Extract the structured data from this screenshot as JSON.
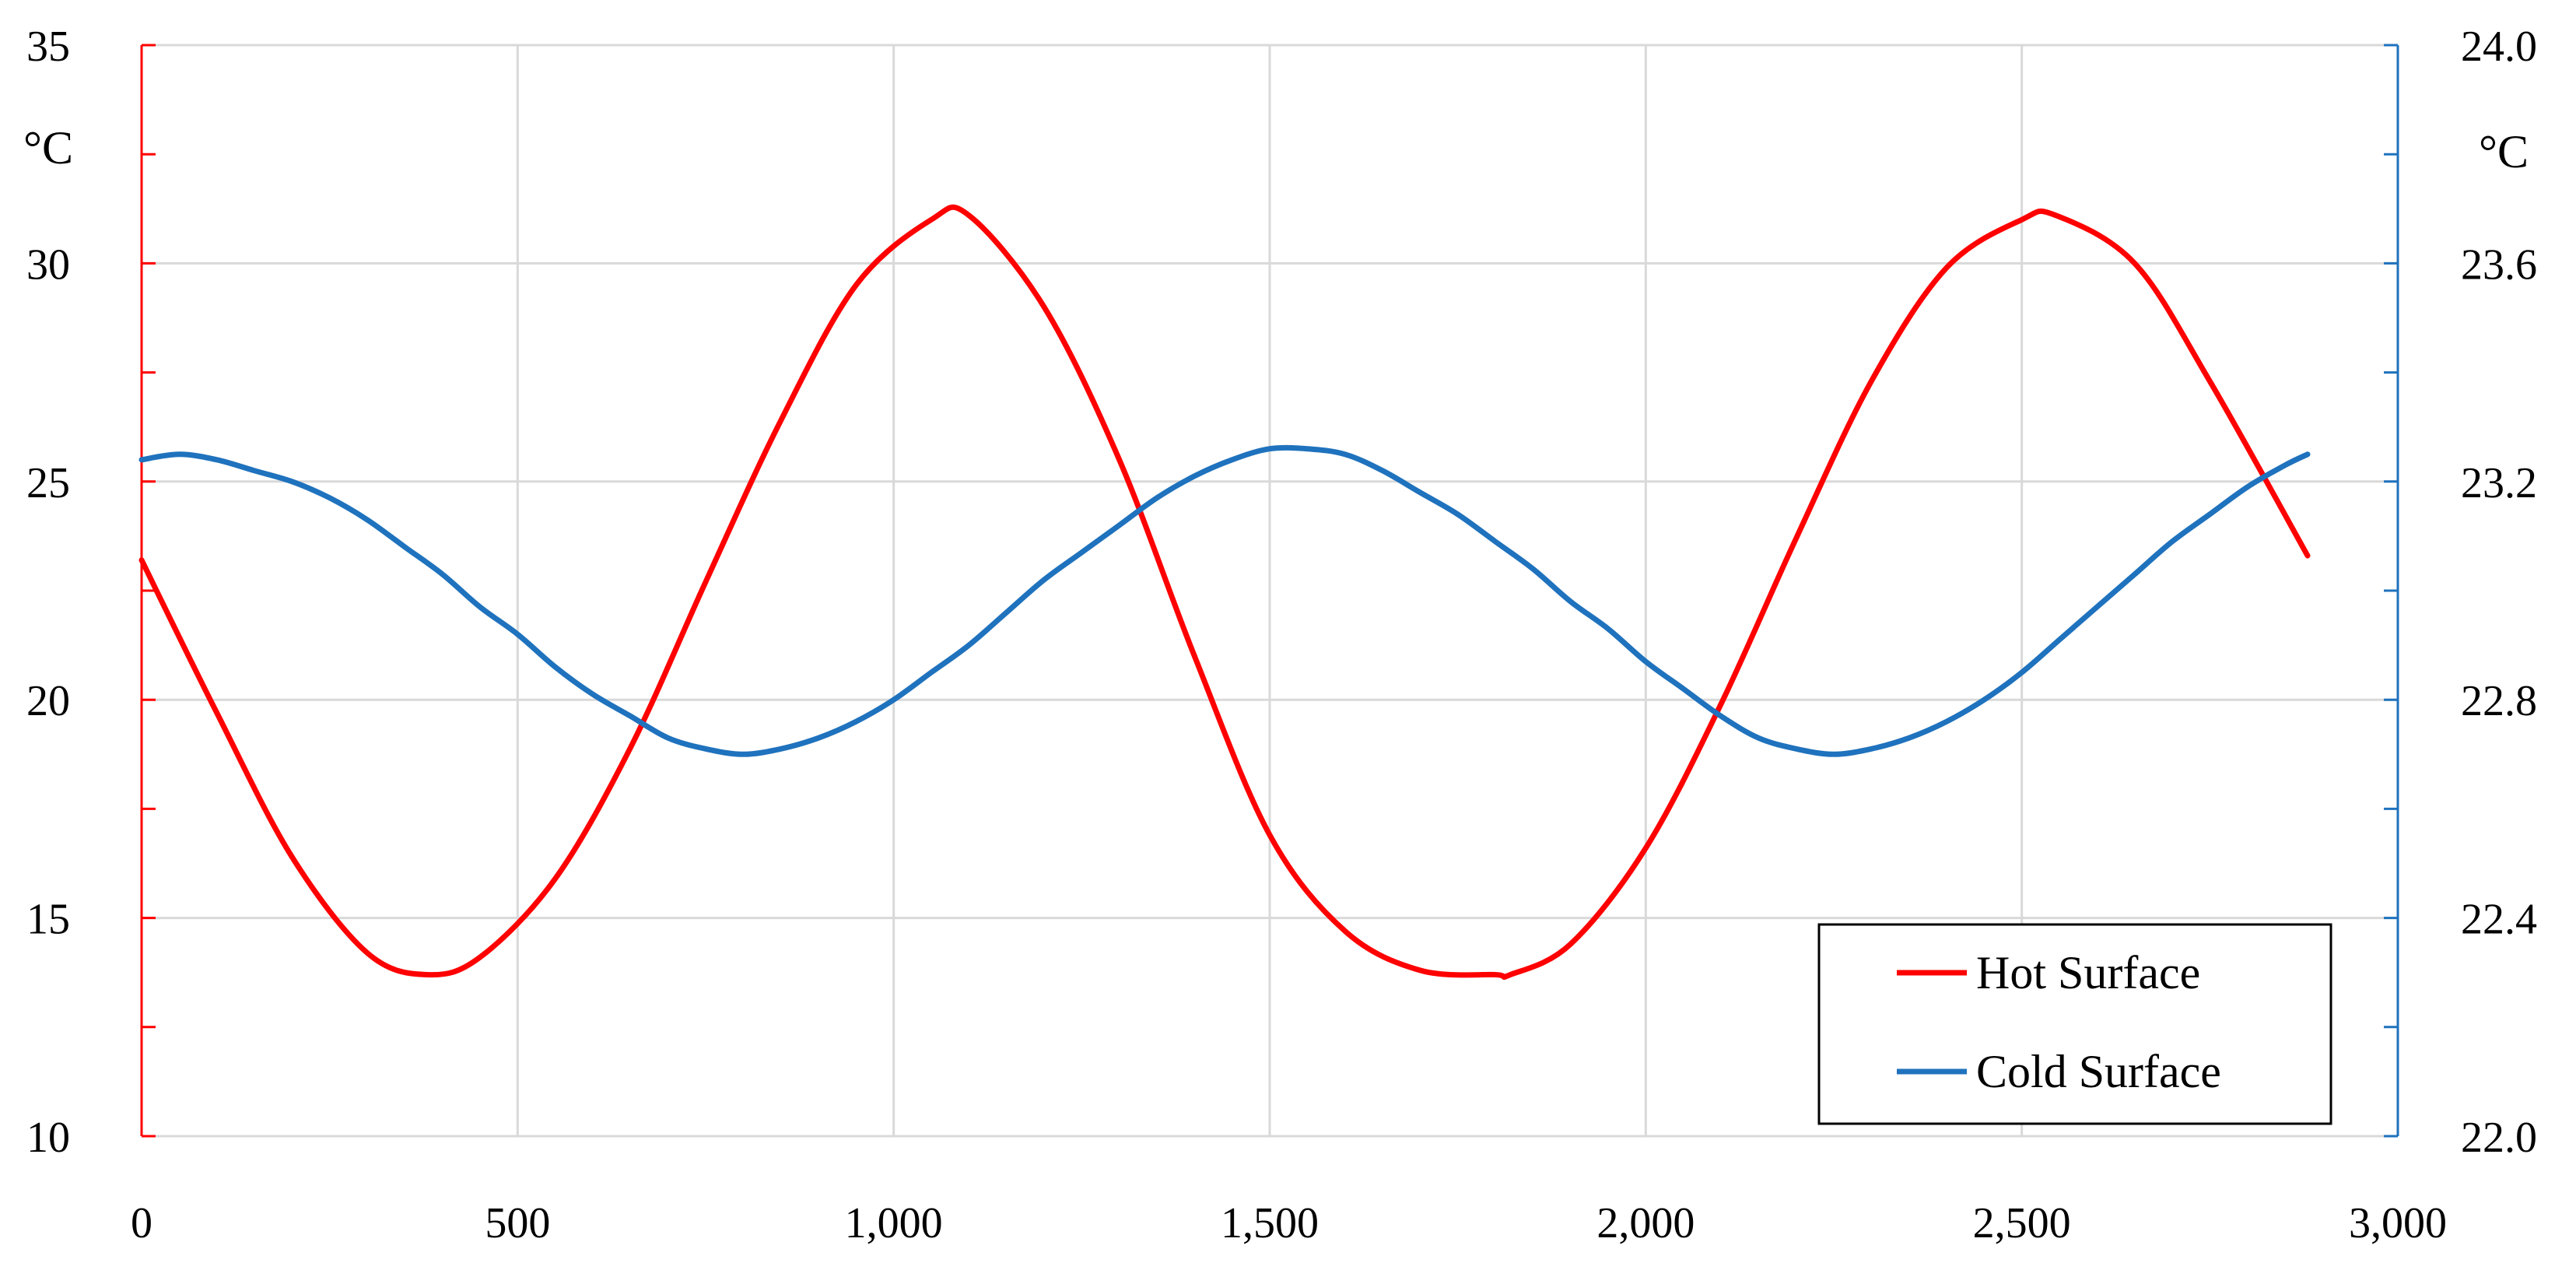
{
  "chart_data": {
    "type": "line",
    "title": "",
    "xlabel": "",
    "x_ticks": [
      "0",
      "500",
      "1,000",
      "1,500",
      "2,000",
      "2,500",
      "3,000"
    ],
    "xlim": [
      0,
      3000
    ],
    "y_left": {
      "unit": "°C",
      "ylim": [
        10,
        35
      ],
      "ticks": [
        "10",
        "15",
        "20",
        "25",
        "30",
        "35"
      ],
      "color": "#ff0000"
    },
    "y_right": {
      "unit": "°C",
      "ylim": [
        22.0,
        24.0
      ],
      "ticks": [
        "22.0",
        "22.4",
        "22.8",
        "23.2",
        "23.6",
        "24.0"
      ],
      "color": "#1f72bd"
    },
    "grid": true,
    "legend_position": "bottom-right",
    "series": [
      {
        "name": "Hot Surface",
        "axis": "left",
        "color": "#ff0000",
        "x": [
          0,
          100,
          200,
          300,
          380,
          450,
          550,
          650,
          750,
          850,
          950,
          1050,
          1100,
          1200,
          1300,
          1400,
          1500,
          1600,
          1700,
          1800,
          1820,
          1900,
          2000,
          2100,
          2200,
          2300,
          2400,
          2500,
          2545,
          2650,
          2750,
          2880
        ],
        "values": [
          23.2,
          19.7,
          16.4,
          14.2,
          13.7,
          14.1,
          15.9,
          18.9,
          22.7,
          26.4,
          29.5,
          31.0,
          31.1,
          29.0,
          25.5,
          21.0,
          16.9,
          14.7,
          13.8,
          13.7,
          13.7,
          14.4,
          16.6,
          19.9,
          23.7,
          27.3,
          29.9,
          31.0,
          31.1,
          30.0,
          27.3,
          23.3
        ]
      },
      {
        "name": "Cold Surface",
        "axis": "right",
        "color": "#1f72bd",
        "x": [
          0,
          50,
          100,
          150,
          200,
          250,
          300,
          350,
          400,
          450,
          500,
          550,
          600,
          650,
          700,
          750,
          800,
          850,
          900,
          950,
          1000,
          1050,
          1100,
          1150,
          1200,
          1250,
          1300,
          1350,
          1400,
          1450,
          1500,
          1550,
          1600,
          1650,
          1700,
          1750,
          1800,
          1850,
          1900,
          1950,
          2000,
          2050,
          2100,
          2150,
          2200,
          2250,
          2300,
          2350,
          2400,
          2450,
          2500,
          2550,
          2600,
          2650,
          2700,
          2750,
          2800,
          2850,
          2880
        ],
        "values": [
          23.24,
          23.25,
          23.24,
          23.22,
          23.2,
          23.17,
          23.13,
          23.08,
          23.03,
          22.97,
          22.92,
          22.86,
          22.81,
          22.77,
          22.73,
          22.71,
          22.7,
          22.71,
          22.73,
          22.76,
          22.8,
          22.85,
          22.9,
          22.96,
          23.02,
          23.07,
          23.12,
          23.17,
          23.21,
          23.24,
          23.26,
          23.26,
          23.25,
          23.22,
          23.18,
          23.14,
          23.09,
          23.04,
          22.98,
          22.93,
          22.87,
          22.82,
          22.77,
          22.73,
          22.71,
          22.7,
          22.71,
          22.73,
          22.76,
          22.8,
          22.85,
          22.91,
          22.97,
          23.03,
          23.09,
          23.14,
          23.19,
          23.23,
          23.25
        ]
      }
    ]
  }
}
